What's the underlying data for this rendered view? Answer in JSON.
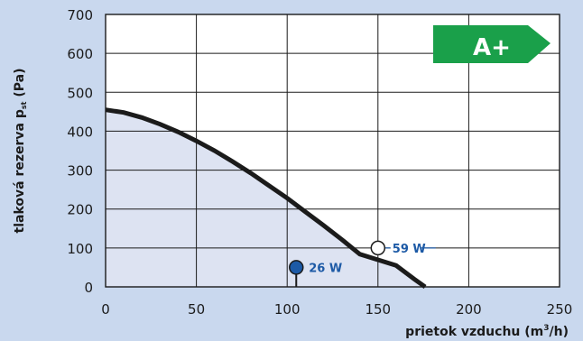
{
  "colors": {
    "background": "#c9d8ee",
    "plot_background": "#ffffff",
    "area_fill": "#dde3f2",
    "curve": "#1b1b1b",
    "grid": "#1b1b1b",
    "point_fill": "#1d5aa6",
    "point_label": "#1d5aa6",
    "badge": "#1aa04a",
    "badge_text": "#ffffff"
  },
  "chart_data": {
    "type": "line",
    "xlabel_prefix": "prietok vzduchu (m",
    "xlabel_sup": "3",
    "xlabel_suffix": "/h)",
    "ylabel_prefix": "tlaková rezerva p",
    "ylabel_sub": "st",
    "ylabel_suffix": " (Pa)",
    "xlim": [
      0,
      250
    ],
    "ylim": [
      0,
      700
    ],
    "xticks": [
      0,
      50,
      100,
      150,
      200,
      250
    ],
    "yticks": [
      0,
      100,
      200,
      300,
      400,
      500,
      600,
      700
    ],
    "xtick_labels": [
      "0",
      "50",
      "100",
      "150",
      "200",
      "250"
    ],
    "ytick_labels": [
      "0",
      "100",
      "200",
      "300",
      "400",
      "500",
      "600",
      "700"
    ],
    "grid": true,
    "series": [
      {
        "x": [
          0,
          10,
          20,
          30,
          40,
          50,
          60,
          70,
          80,
          90,
          100,
          110,
          120,
          130,
          140,
          150,
          160,
          170,
          176
        ],
        "y": [
          455,
          448,
          435,
          418,
          398,
          375,
          350,
          322,
          292,
          260,
          228,
          193,
          158,
          122,
          84,
          100,
          55,
          20,
          0
        ]
      }
    ],
    "markers": [
      {
        "x": 105,
        "y": 50,
        "label": "26 W",
        "style": "filled"
      },
      {
        "x": 150,
        "y": 100,
        "label": "59 W",
        "style": "open"
      }
    ],
    "badge": "A+"
  }
}
